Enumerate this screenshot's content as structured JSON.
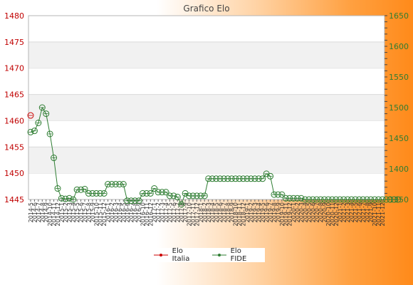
{
  "chart_data": {
    "type": "line",
    "title": "Grafico Elo",
    "y_left": {
      "lim": [
        1445,
        1480
      ],
      "ticks": [
        1445,
        1450,
        1455,
        1460,
        1465,
        1470,
        1475,
        1480
      ],
      "color": "#cc0000"
    },
    "y_right": {
      "lim": [
        1350,
        1650
      ],
      "ticks": [
        1350,
        1400,
        1450,
        1500,
        1550,
        1600,
        1650
      ],
      "color": "#2e7d32"
    },
    "x_labels": [
      "2014-5",
      "2014-6",
      "2014-7",
      "2014-8",
      "2014-9",
      "2014-10",
      "2014-11",
      "2014-12",
      "2015-1",
      "2015-2",
      "2015-3",
      "2015-4",
      "2015-5",
      "2015-6",
      "2015-7",
      "2015-8",
      "2015-9",
      "2015-10",
      "2015-11",
      "2015-12",
      "2016-1",
      "2016-2",
      "2016-3",
      "2016-4",
      "2016-5",
      "2016-6",
      "2016-7",
      "2016-8",
      "2016-9",
      "2016-10",
      "2016-11",
      "2016-12",
      "2017-1",
      "2017-2",
      "2017-3",
      "2017-4",
      "2017-5",
      "2017-6",
      "2017-7",
      "2017-8",
      "2017-9",
      "2017-10",
      "2017-11",
      "2017-12",
      "2018-1",
      "2018-2",
      "2018-3",
      "2018-4",
      "2018-5",
      "2018-6",
      "2018-7",
      "2018-8",
      "2018-9",
      "2018-10",
      "2018-11",
      "2018-12",
      "2019-1",
      "2019-2",
      "2019-3",
      "2019-4",
      "2019-5",
      "2019-6",
      "2019-7",
      "2019-8",
      "2019-9",
      "2019-10",
      "2019-11",
      "2019-12",
      "2020-1",
      "2020-2",
      "2020-3",
      "2020-4",
      "2020-5",
      "2020-6",
      "2020-7",
      "2020-8",
      "2020-9",
      "2020-10",
      "2020-11",
      "2020-12",
      "2021-1",
      "2021-2",
      "2021-3",
      "2021-4",
      "2021-5",
      "2021-6",
      "2021-7",
      "2021-8",
      "2021-9",
      "2021-10",
      "2021-11",
      "2021-12"
    ],
    "series": [
      {
        "name": "Elo Italia",
        "axis": "left",
        "color": "#cc0000",
        "values": [
          1461.0
        ]
      },
      {
        "name": "Elo FIDE",
        "axis": "right",
        "color": "#2e7d32",
        "values": [
          1460,
          1462,
          1475,
          1500,
          1490,
          1457,
          1418,
          1368,
          1352,
          1351,
          1352,
          1350,
          1366,
          1366,
          1367,
          1360,
          1360,
          1360,
          1360,
          1360,
          1375,
          1375,
          1375,
          1375,
          1375,
          1348,
          1348,
          1348,
          1348,
          1360,
          1360,
          1360,
          1368,
          1362,
          1362,
          1362,
          1356,
          1356,
          1354,
          1342,
          1360,
          1356,
          1356,
          1356,
          1356,
          1356,
          1384,
          1384,
          1384,
          1384,
          1384,
          1384,
          1384,
          1384,
          1384,
          1384,
          1384,
          1384,
          1384,
          1384,
          1384,
          1392,
          1388,
          1358,
          1358,
          1358,
          1352,
          1352,
          1352,
          1352,
          1352,
          1350,
          1350,
          1350,
          1350,
          1350,
          1350,
          1350,
          1350,
          1350,
          1350,
          1350,
          1350,
          1350,
          1350,
          1350,
          1350,
          1350,
          1350,
          1350,
          1350,
          1350,
          1350,
          1350,
          1350,
          1350
        ]
      }
    ]
  },
  "legend": {
    "position": "bottom-center",
    "items": [
      "Elo Italia",
      "Elo FIDE"
    ]
  }
}
